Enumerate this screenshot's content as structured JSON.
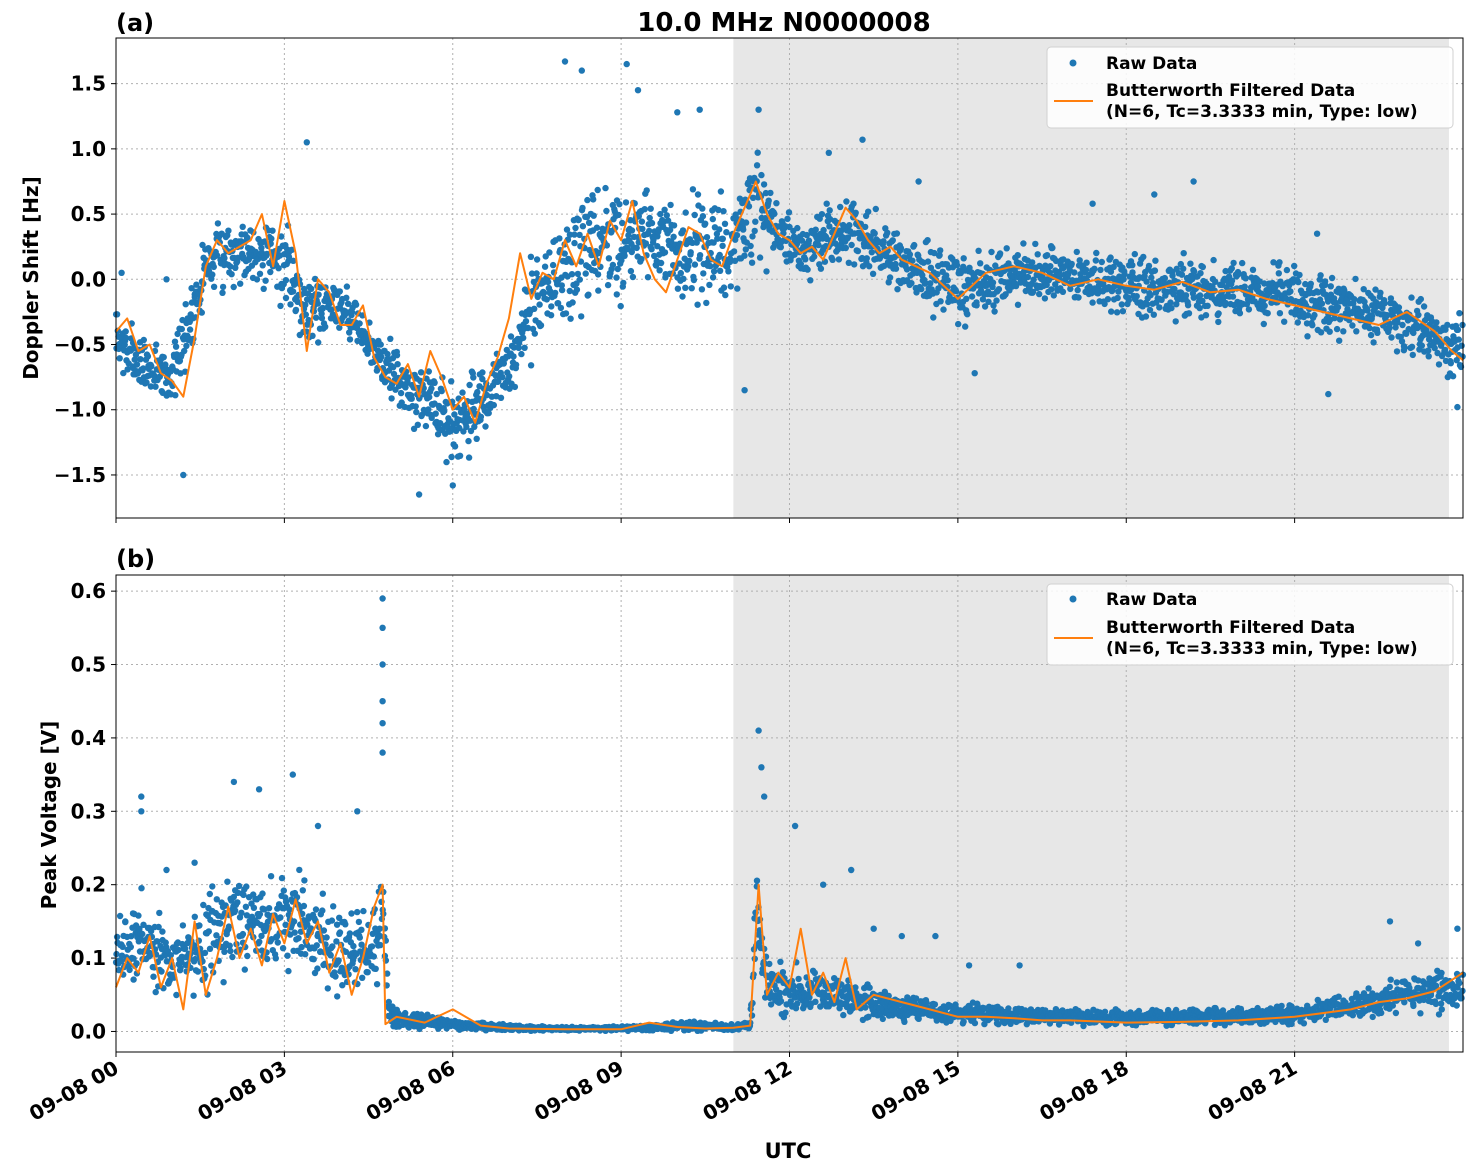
{
  "figure": {
    "title": "10.0 MHz N0000008",
    "xlabel": "UTC",
    "x_tick_labels": [
      "09-08 00",
      "09-08 03",
      "09-08 06",
      "09-08 09",
      "09-08 12",
      "09-08 15",
      "09-08 18",
      "09-08 21"
    ]
  },
  "colors": {
    "raw": "#1f77b4",
    "filtered": "#ff7f0e",
    "night_shade": "#e7e7e7",
    "grid": "#b0b0b0"
  },
  "chart_data": [
    {
      "type": "scatter",
      "panel_label": "(a)",
      "ylabel": "Doppler Shift [Hz]",
      "x_unit": "hours UTC since 09-08 00",
      "xlim": [
        0,
        24
      ],
      "ylim": [
        -1.83,
        1.85
      ],
      "y_ticks": [
        -1.5,
        -1.0,
        -0.5,
        0.0,
        0.5,
        1.0,
        1.5
      ],
      "y_tick_labels": [
        "−1.5",
        "−1.0",
        "−0.5",
        "0.0",
        "0.5",
        "1.0",
        "1.5"
      ],
      "grid": true,
      "shaded_interval": [
        11.0,
        23.75
      ],
      "legend": {
        "placement": "top-right",
        "raw_label": "Raw Data",
        "filtered_label_line1": "Butterworth Filtered Data",
        "filtered_label_line2": "(N=6, Tc=3.3333 min, Type: low)"
      },
      "series": [
        {
          "name": "Raw Data",
          "kind": "points",
          "envelope": {
            "x": [
              0.0,
              0.5,
              1.0,
              1.3,
              1.6,
              2.0,
              2.5,
              3.0,
              3.4,
              4.0,
              4.6,
              5.0,
              5.5,
              6.0,
              6.5,
              7.0,
              7.5,
              8.0,
              8.5,
              9.0,
              9.5,
              10.0,
              10.5,
              11.0,
              11.4,
              11.6,
              12.0,
              12.5,
              13.0,
              13.5,
              14.0,
              14.5,
              15.0,
              16.0,
              17.0,
              18.0,
              19.0,
              20.0,
              21.0,
              22.0,
              22.5,
              23.0,
              23.5,
              24.0
            ],
            "lo": [
              -0.8,
              -1.0,
              -1.0,
              -0.7,
              -0.2,
              -0.15,
              -0.1,
              -0.3,
              -0.6,
              -0.45,
              -0.8,
              -1.05,
              -1.25,
              -1.5,
              -1.4,
              -1.05,
              -0.7,
              -0.6,
              -0.35,
              -0.35,
              -0.2,
              -0.3,
              -0.35,
              -0.3,
              -0.1,
              0.05,
              -0.05,
              -0.05,
              0.0,
              -0.1,
              -0.2,
              -0.35,
              -0.45,
              -0.25,
              -0.25,
              -0.35,
              -0.45,
              -0.4,
              -0.45,
              -0.6,
              -0.55,
              -0.65,
              -0.75,
              -0.9
            ],
            "hi": [
              -0.15,
              -0.35,
              -0.45,
              0.0,
              0.45,
              0.6,
              0.55,
              0.55,
              0.15,
              0.1,
              -0.3,
              -0.45,
              -0.55,
              -0.7,
              -0.5,
              -0.35,
              0.5,
              0.7,
              0.85,
              0.9,
              0.8,
              0.75,
              0.75,
              0.8,
              1.25,
              0.95,
              0.55,
              0.55,
              0.8,
              0.6,
              0.45,
              0.35,
              0.3,
              0.35,
              0.3,
              0.25,
              0.25,
              0.25,
              0.2,
              0.1,
              0.05,
              -0.05,
              -0.15,
              -0.2
            ]
          },
          "outliers": [
            {
              "x": 0.1,
              "y": 0.05
            },
            {
              "x": 0.9,
              "y": 0.0
            },
            {
              "x": 1.2,
              "y": -1.5
            },
            {
              "x": 3.4,
              "y": 1.05
            },
            {
              "x": 5.4,
              "y": -1.65
            },
            {
              "x": 6.0,
              "y": -1.58
            },
            {
              "x": 8.0,
              "y": 1.67
            },
            {
              "x": 8.3,
              "y": 1.6
            },
            {
              "x": 9.1,
              "y": 1.65
            },
            {
              "x": 9.3,
              "y": 1.45
            },
            {
              "x": 10.0,
              "y": 1.28
            },
            {
              "x": 10.4,
              "y": 1.3
            },
            {
              "x": 11.2,
              "y": -0.85
            },
            {
              "x": 11.45,
              "y": 1.3
            },
            {
              "x": 12.7,
              "y": 0.97
            },
            {
              "x": 13.3,
              "y": 1.07
            },
            {
              "x": 14.3,
              "y": 0.75
            },
            {
              "x": 15.3,
              "y": -0.72
            },
            {
              "x": 17.4,
              "y": 0.58
            },
            {
              "x": 18.5,
              "y": 0.65
            },
            {
              "x": 19.2,
              "y": 0.75
            },
            {
              "x": 21.4,
              "y": 0.35
            },
            {
              "x": 21.6,
              "y": -0.88
            },
            {
              "x": 23.9,
              "y": -0.98
            }
          ]
        },
        {
          "name": "Butterworth Filtered Data",
          "kind": "line",
          "x": [
            0.0,
            0.2,
            0.4,
            0.6,
            0.8,
            1.0,
            1.2,
            1.4,
            1.6,
            1.8,
            2.0,
            2.2,
            2.4,
            2.6,
            2.8,
            3.0,
            3.2,
            3.4,
            3.6,
            3.8,
            4.0,
            4.2,
            4.4,
            4.6,
            4.8,
            5.0,
            5.2,
            5.4,
            5.6,
            5.8,
            6.0,
            6.2,
            6.4,
            6.6,
            6.8,
            7.0,
            7.2,
            7.4,
            7.6,
            7.8,
            8.0,
            8.2,
            8.4,
            8.6,
            8.8,
            9.0,
            9.2,
            9.4,
            9.6,
            9.8,
            10.0,
            10.2,
            10.4,
            10.6,
            10.8,
            11.0,
            11.2,
            11.4,
            11.6,
            11.8,
            12.0,
            12.2,
            12.4,
            12.6,
            12.8,
            13.0,
            13.2,
            13.4,
            13.6,
            13.8,
            14.0,
            14.5,
            15.0,
            15.5,
            16.0,
            16.5,
            17.0,
            17.5,
            18.0,
            18.5,
            19.0,
            19.5,
            20.0,
            20.5,
            21.0,
            21.5,
            22.0,
            22.5,
            23.0,
            23.5,
            23.8,
            24.0
          ],
          "y": [
            -0.4,
            -0.3,
            -0.55,
            -0.5,
            -0.72,
            -0.78,
            -0.9,
            -0.45,
            0.1,
            0.3,
            0.2,
            0.25,
            0.3,
            0.5,
            0.1,
            0.6,
            0.2,
            -0.55,
            0.0,
            -0.1,
            -0.35,
            -0.35,
            -0.2,
            -0.6,
            -0.75,
            -0.8,
            -0.65,
            -0.9,
            -0.55,
            -0.75,
            -1.0,
            -0.9,
            -1.1,
            -0.8,
            -0.6,
            -0.3,
            0.2,
            -0.15,
            0.05,
            0.0,
            0.3,
            0.1,
            0.35,
            0.1,
            0.45,
            0.3,
            0.6,
            0.2,
            0.0,
            -0.1,
            0.15,
            0.4,
            0.35,
            0.15,
            0.1,
            0.35,
            0.55,
            0.75,
            0.5,
            0.35,
            0.3,
            0.2,
            0.25,
            0.15,
            0.35,
            0.55,
            0.45,
            0.3,
            0.2,
            0.25,
            0.15,
            0.05,
            -0.15,
            0.05,
            0.1,
            0.05,
            -0.05,
            0.0,
            -0.05,
            -0.08,
            -0.02,
            -0.1,
            -0.08,
            -0.15,
            -0.2,
            -0.25,
            -0.3,
            -0.35,
            -0.25,
            -0.4,
            -0.55,
            -0.62
          ]
        }
      ]
    },
    {
      "type": "scatter",
      "panel_label": "(b)",
      "ylabel": "Peak Voltage [V]",
      "x_unit": "hours UTC since 09-08 00",
      "xlim": [
        0,
        24
      ],
      "ylim": [
        -0.028,
        0.622
      ],
      "y_ticks": [
        0.0,
        0.1,
        0.2,
        0.3,
        0.4,
        0.5,
        0.6
      ],
      "y_tick_labels": [
        "0.0",
        "0.1",
        "0.2",
        "0.3",
        "0.4",
        "0.5",
        "0.6"
      ],
      "grid": true,
      "shaded_interval": [
        11.0,
        23.75
      ],
      "legend": {
        "placement": "top-right",
        "raw_label": "Raw Data",
        "filtered_label_line1": "Butterworth Filtered Data",
        "filtered_label_line2": "(N=6, Tc=3.3333 min, Type: low)"
      },
      "series": [
        {
          "name": "Raw Data",
          "kind": "points",
          "envelope": {
            "x": [
              0.0,
              0.5,
              1.0,
              1.5,
              2.0,
              2.5,
              3.0,
              3.5,
              4.0,
              4.5,
              4.75,
              4.85,
              5.0,
              5.5,
              6.0,
              7.0,
              8.0,
              9.0,
              10.0,
              10.5,
              11.0,
              11.3,
              11.4,
              11.6,
              12.0,
              12.5,
              13.0,
              13.5,
              14.0,
              15.0,
              16.0,
              17.0,
              18.0,
              19.0,
              20.0,
              21.0,
              22.0,
              23.0,
              24.0
            ],
            "lo": [
              0.03,
              0.04,
              0.03,
              0.02,
              0.05,
              0.05,
              0.05,
              0.04,
              0.03,
              0.03,
              0.05,
              0.005,
              0.0,
              0.0,
              0.0,
              0.0,
              0.0,
              0.0,
              0.0,
              0.0,
              0.0,
              0.0,
              0.05,
              0.02,
              0.01,
              0.01,
              0.01,
              0.005,
              0.005,
              0.005,
              0.005,
              0.005,
              0.005,
              0.005,
              0.005,
              0.005,
              0.01,
              0.02,
              0.02
            ],
            "hi": [
              0.19,
              0.21,
              0.17,
              0.2,
              0.26,
              0.23,
              0.25,
              0.22,
              0.2,
              0.17,
              0.25,
              0.05,
              0.035,
              0.025,
              0.02,
              0.01,
              0.008,
              0.008,
              0.015,
              0.015,
              0.012,
              0.015,
              0.28,
              0.12,
              0.1,
              0.09,
              0.09,
              0.07,
              0.06,
              0.045,
              0.04,
              0.035,
              0.035,
              0.035,
              0.035,
              0.04,
              0.06,
              0.08,
              0.1
            ]
          },
          "outliers": [
            {
              "x": 0.45,
              "y": 0.32
            },
            {
              "x": 0.45,
              "y": 0.3
            },
            {
              "x": 0.9,
              "y": 0.22
            },
            {
              "x": 1.4,
              "y": 0.23
            },
            {
              "x": 2.1,
              "y": 0.34
            },
            {
              "x": 2.55,
              "y": 0.33
            },
            {
              "x": 3.15,
              "y": 0.35
            },
            {
              "x": 3.6,
              "y": 0.28
            },
            {
              "x": 4.3,
              "y": 0.3
            },
            {
              "x": 4.75,
              "y": 0.59
            },
            {
              "x": 4.75,
              "y": 0.55
            },
            {
              "x": 4.75,
              "y": 0.5
            },
            {
              "x": 4.75,
              "y": 0.45
            },
            {
              "x": 4.75,
              "y": 0.42
            },
            {
              "x": 4.75,
              "y": 0.38
            },
            {
              "x": 11.45,
              "y": 0.41
            },
            {
              "x": 11.5,
              "y": 0.36
            },
            {
              "x": 11.55,
              "y": 0.32
            },
            {
              "x": 12.1,
              "y": 0.28
            },
            {
              "x": 12.6,
              "y": 0.2
            },
            {
              "x": 13.1,
              "y": 0.22
            },
            {
              "x": 13.5,
              "y": 0.14
            },
            {
              "x": 14.0,
              "y": 0.13
            },
            {
              "x": 14.6,
              "y": 0.13
            },
            {
              "x": 15.2,
              "y": 0.09
            },
            {
              "x": 16.1,
              "y": 0.09
            },
            {
              "x": 22.7,
              "y": 0.15
            },
            {
              "x": 23.2,
              "y": 0.12
            },
            {
              "x": 23.9,
              "y": 0.14
            }
          ]
        },
        {
          "name": "Butterworth Filtered Data",
          "kind": "line",
          "x": [
            0.0,
            0.2,
            0.4,
            0.6,
            0.8,
            1.0,
            1.2,
            1.4,
            1.6,
            1.8,
            2.0,
            2.2,
            2.4,
            2.6,
            2.8,
            3.0,
            3.2,
            3.4,
            3.6,
            3.8,
            4.0,
            4.2,
            4.4,
            4.6,
            4.75,
            4.8,
            5.0,
            5.5,
            6.0,
            6.5,
            7.0,
            8.0,
            9.0,
            9.5,
            10.0,
            10.5,
            11.0,
            11.3,
            11.45,
            11.6,
            11.8,
            12.0,
            12.2,
            12.4,
            12.6,
            12.8,
            13.0,
            13.2,
            13.5,
            14.0,
            14.5,
            15.0,
            15.5,
            16.0,
            16.5,
            17.0,
            18.0,
            19.0,
            20.0,
            21.0,
            21.5,
            22.0,
            22.5,
            23.0,
            23.5,
            24.0
          ],
          "y": [
            0.06,
            0.1,
            0.08,
            0.13,
            0.06,
            0.1,
            0.03,
            0.15,
            0.05,
            0.1,
            0.17,
            0.1,
            0.14,
            0.09,
            0.16,
            0.12,
            0.18,
            0.12,
            0.15,
            0.08,
            0.12,
            0.05,
            0.1,
            0.17,
            0.2,
            0.01,
            0.02,
            0.012,
            0.03,
            0.008,
            0.004,
            0.003,
            0.003,
            0.012,
            0.006,
            0.004,
            0.005,
            0.008,
            0.2,
            0.05,
            0.08,
            0.06,
            0.14,
            0.05,
            0.08,
            0.04,
            0.1,
            0.03,
            0.05,
            0.04,
            0.03,
            0.02,
            0.02,
            0.018,
            0.015,
            0.015,
            0.012,
            0.013,
            0.015,
            0.02,
            0.025,
            0.03,
            0.04,
            0.045,
            0.055,
            0.08
          ]
        }
      ]
    }
  ]
}
